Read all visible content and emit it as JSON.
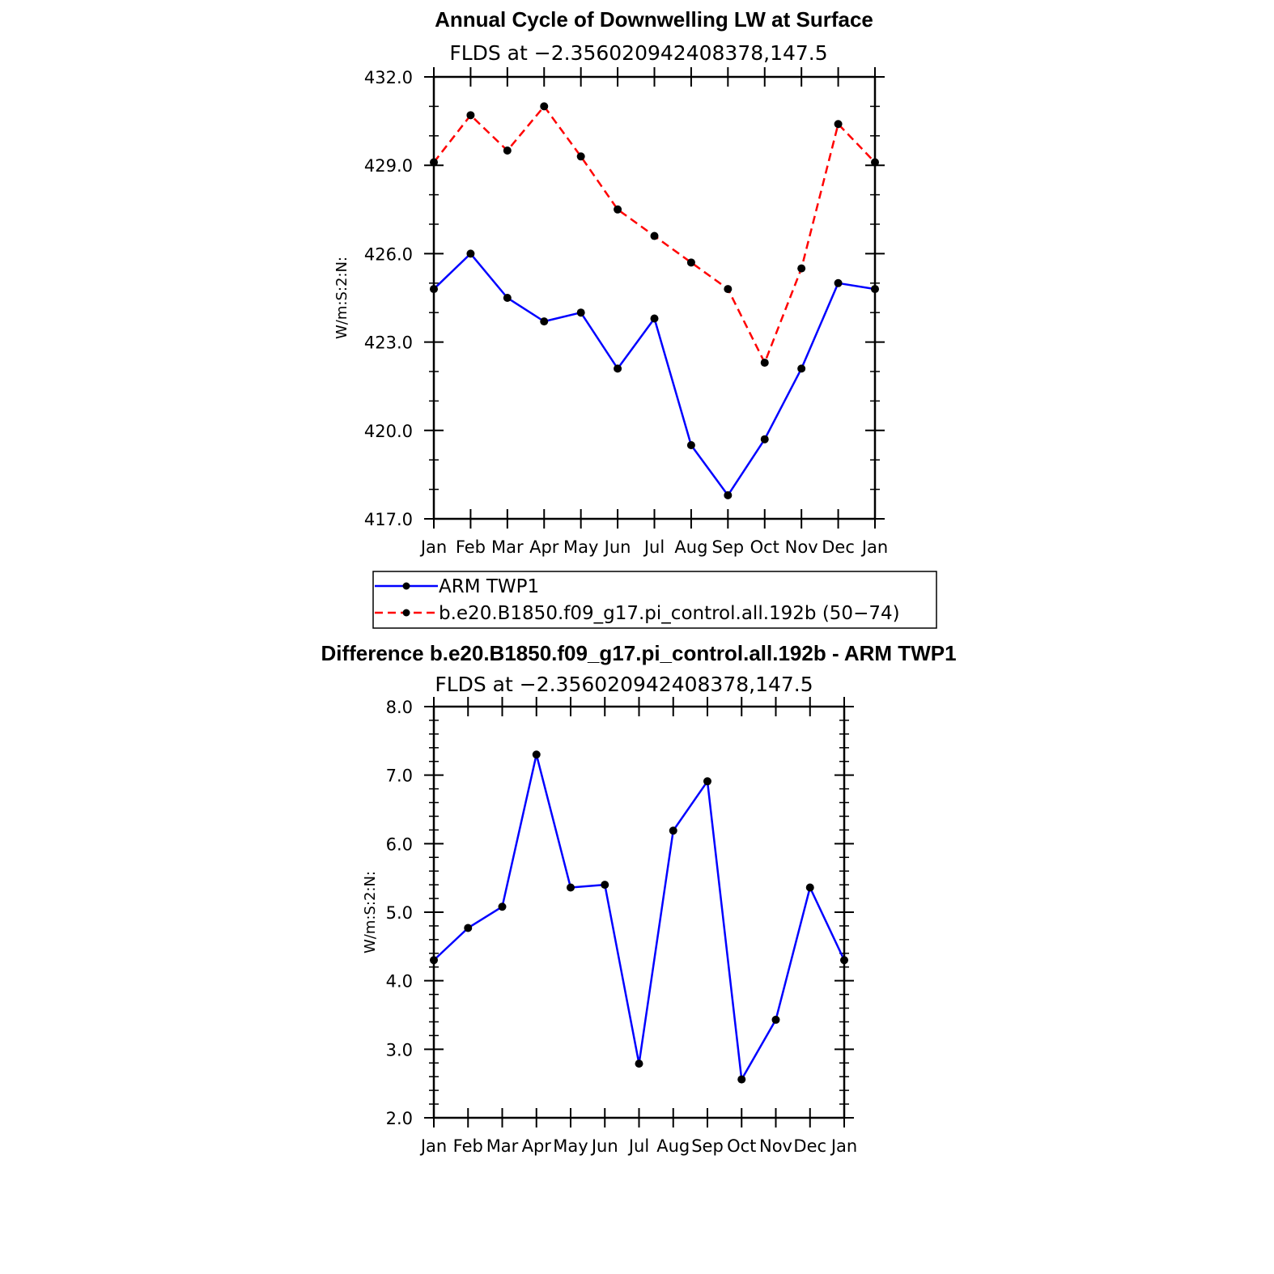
{
  "chart_data": [
    {
      "type": "line",
      "title": "Annual Cycle of Downwelling LW at Surface",
      "subtitle": "FLDS at −2.356020942408378,147.5",
      "ylabel": "W/m:S:2:N:",
      "ylim": [
        417.0,
        432.0
      ],
      "yticks": [
        "432.0",
        "429.0",
        "426.0",
        "423.0",
        "420.0",
        "417.0"
      ],
      "categories": [
        "Jan",
        "Feb",
        "Mar",
        "Apr",
        "May",
        "Jun",
        "Jul",
        "Aug",
        "Sep",
        "Oct",
        "Nov",
        "Dec",
        "Jan"
      ],
      "legend_position": "bottom",
      "series": [
        {
          "name": "ARM TWP1",
          "color": "#0000ff",
          "dash": "solid",
          "values": [
            424.8,
            426.0,
            424.5,
            423.7,
            424.0,
            422.1,
            423.8,
            419.5,
            417.8,
            419.7,
            422.1,
            425.0,
            424.8
          ]
        },
        {
          "name": "b.e20.B1850.f09_g17.pi_control.all.192b (50−74)",
          "color": "#ff0000",
          "dash": "dashed",
          "values": [
            429.1,
            430.7,
            429.5,
            431.0,
            429.3,
            427.5,
            426.6,
            425.7,
            424.8,
            422.3,
            425.5,
            430.4,
            429.1
          ]
        }
      ]
    },
    {
      "type": "line",
      "title": "Difference b.e20.B1850.f09_g17.pi_control.all.192b - ARM TWP1",
      "subtitle": "FLDS at −2.356020942408378,147.5",
      "ylabel": "W/m:S:2:N:",
      "ylim": [
        2.0,
        8.0
      ],
      "yticks": [
        "8.0",
        "7.0",
        "6.0",
        "5.0",
        "4.0",
        "3.0",
        "2.0"
      ],
      "categories": [
        "Jan",
        "Feb",
        "Mar",
        "Apr",
        "May",
        "Jun",
        "Jul",
        "Aug",
        "Sep",
        "Oct",
        "Nov",
        "Dec",
        "Jan"
      ],
      "series": [
        {
          "color": "#0000ff",
          "dash": "solid",
          "values": [
            4.3,
            4.77,
            5.08,
            7.3,
            5.36,
            5.4,
            2.79,
            6.19,
            6.91,
            2.56,
            3.43,
            5.36,
            4.3
          ]
        }
      ]
    }
  ]
}
